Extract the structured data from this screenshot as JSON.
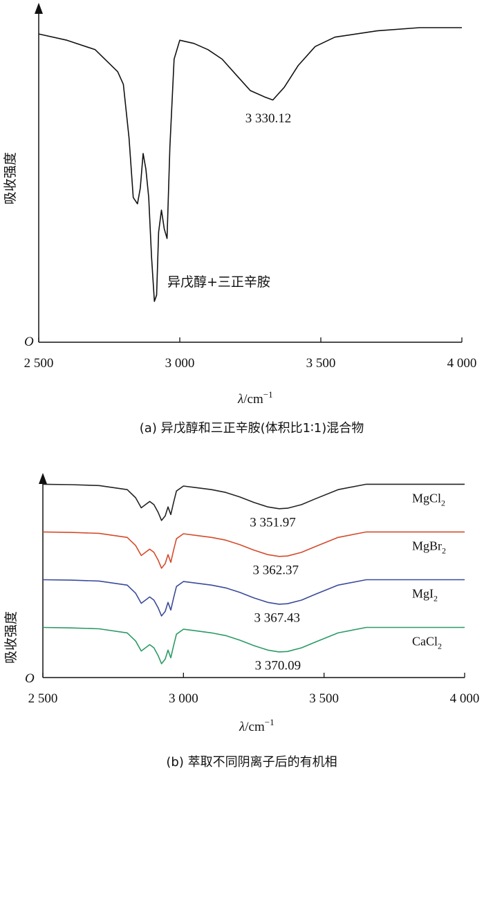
{
  "chart_data": [
    {
      "type": "line",
      "panel": "a",
      "caption": "(a) 异戊醇和三正辛胺(体积比1∶1)混合物",
      "xlabel_symbol": "λ",
      "xlabel_unit": "/cm",
      "xlabel_exp": "−1",
      "ylabel": "吸收强度",
      "origin_label": "O",
      "xlim": [
        2500,
        4000
      ],
      "ylim": [
        0,
        1
      ],
      "x_ticks": [
        2500,
        3000,
        3500,
        4000
      ],
      "x_tick_labels": [
        "2 500",
        "3 000",
        "3 500",
        "4 000"
      ],
      "grid": false,
      "series": [
        {
          "name": "异戊醇+三正辛胺",
          "color": "#111111",
          "x": [
            2500,
            2600,
            2700,
            2780,
            2800,
            2820,
            2835,
            2850,
            2860,
            2870,
            2880,
            2890,
            2900,
            2910,
            2918,
            2925,
            2935,
            2945,
            2955,
            2965,
            2980,
            3000,
            3050,
            3100,
            3150,
            3200,
            3250,
            3300,
            3330,
            3370,
            3420,
            3480,
            3550,
            3700,
            3850,
            4000
          ],
          "y": [
            0.98,
            0.96,
            0.93,
            0.86,
            0.82,
            0.65,
            0.46,
            0.44,
            0.49,
            0.6,
            0.55,
            0.46,
            0.27,
            0.13,
            0.15,
            0.35,
            0.42,
            0.36,
            0.33,
            0.62,
            0.9,
            0.96,
            0.95,
            0.93,
            0.9,
            0.85,
            0.8,
            0.78,
            0.77,
            0.81,
            0.88,
            0.94,
            0.97,
            0.99,
            1.0,
            1.0
          ]
        }
      ],
      "annotations": [
        {
          "text": "3 330.12",
          "x": 3330,
          "y": 0.77
        },
        {
          "text": "异戊醇+三正辛胺",
          "x": 2930,
          "y": 0.13
        }
      ]
    },
    {
      "type": "line",
      "panel": "b",
      "caption": "(b) 萃取不同阴离子后的有机相",
      "xlabel_symbol": "λ",
      "xlabel_unit": "/cm",
      "xlabel_exp": "−1",
      "ylabel": "吸收强度",
      "origin_label": "O",
      "xlim": [
        2500,
        4000
      ],
      "ylim": [
        0,
        4.2
      ],
      "x_ticks": [
        2500,
        3000,
        3500,
        4000
      ],
      "x_tick_labels": [
        "2 500",
        "3 000",
        "3 500",
        "4 000"
      ],
      "grid": false,
      "series": [
        {
          "name": "MgCl₂",
          "label_main": "MgCl",
          "label_sub": "2",
          "color": "#222222",
          "offset": 3.1,
          "peak_label": "3 351.97",
          "peak_x": 3351.97
        },
        {
          "name": "MgBr₂",
          "label_main": "MgBr",
          "label_sub": "2",
          "color": "#d44a2a",
          "offset": 2.1,
          "peak_label": "3 362.37",
          "peak_x": 3362.37
        },
        {
          "name": "MgI₂",
          "label_main": "MgI",
          "label_sub": "2",
          "color": "#3a4a9a",
          "offset": 1.1,
          "peak_label": "3 367.43",
          "peak_x": 3367.43
        },
        {
          "name": "CaCl₂",
          "label_main": "CaCl",
          "label_sub": "2",
          "color": "#2a9a64",
          "offset": 0.1,
          "peak_label": "3 370.09",
          "peak_x": 3370.09
        }
      ],
      "shape_x": [
        2500,
        2600,
        2700,
        2800,
        2830,
        2850,
        2865,
        2880,
        2895,
        2910,
        2922,
        2935,
        2945,
        2955,
        2965,
        2975,
        3000,
        3050,
        3100,
        3150,
        3200,
        3250,
        3300,
        3340,
        3370,
        3420,
        3470,
        3550,
        3650,
        3800,
        4000
      ],
      "shape_y": [
        1.0,
        0.99,
        0.97,
        0.88,
        0.7,
        0.48,
        0.55,
        0.62,
        0.55,
        0.38,
        0.2,
        0.3,
        0.5,
        0.33,
        0.6,
        0.85,
        0.96,
        0.92,
        0.88,
        0.82,
        0.72,
        0.6,
        0.5,
        0.46,
        0.47,
        0.55,
        0.68,
        0.88,
        1.0,
        1.0,
        1.0
      ],
      "shape_scale": 0.95
    }
  ]
}
